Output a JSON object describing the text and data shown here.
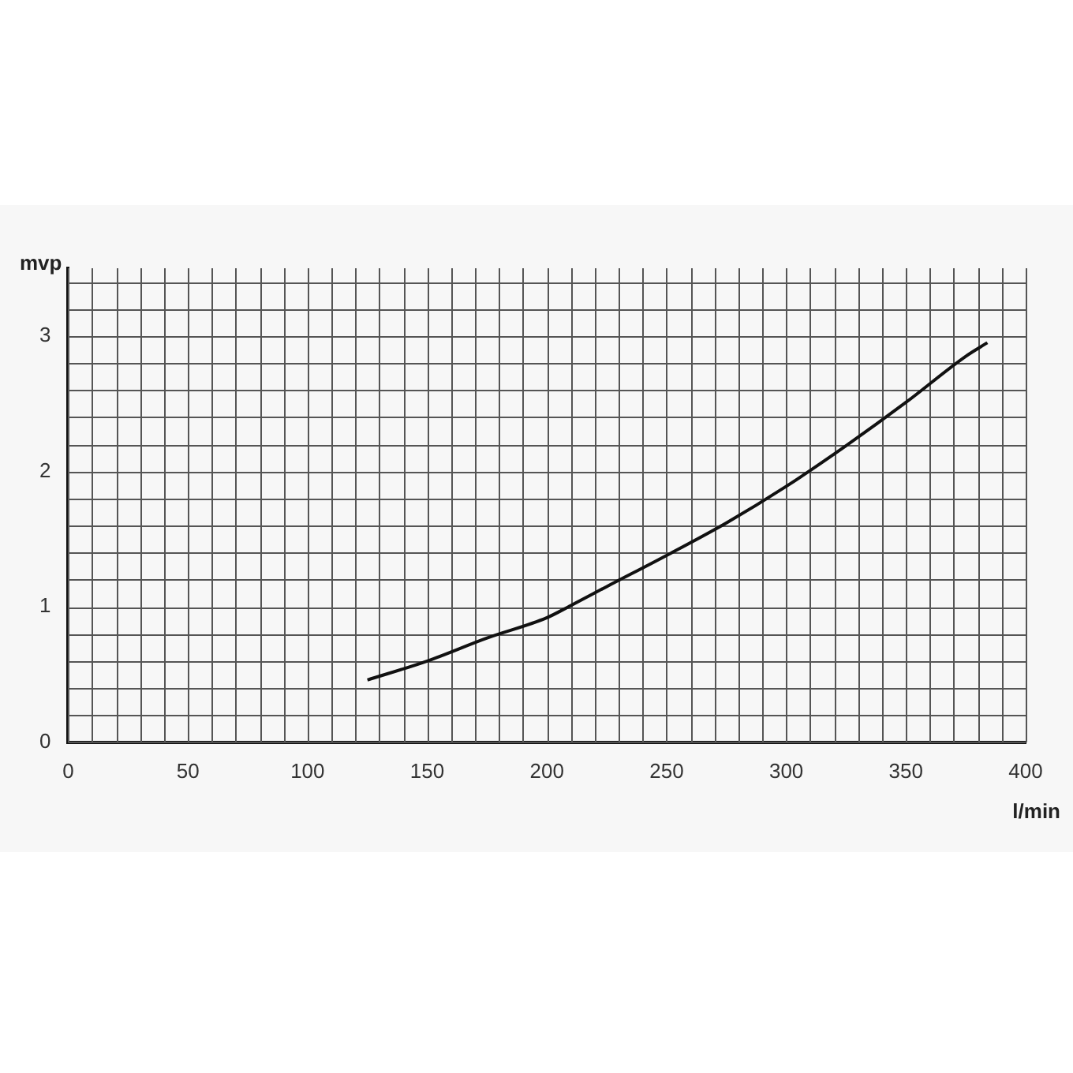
{
  "chart_data": {
    "type": "line",
    "xlabel": "l/min",
    "ylabel": "mvp",
    "grid": true,
    "x": [
      125,
      150,
      175,
      200,
      210,
      225,
      250,
      275,
      300,
      325,
      350,
      375,
      384
    ],
    "series": [
      {
        "color": "#111111",
        "values": [
          0.46,
          0.6,
          0.77,
          0.92,
          1.01,
          1.15,
          1.38,
          1.62,
          1.89,
          2.19,
          2.51,
          2.85,
          2.95
        ]
      }
    ],
    "xlim": [
      0,
      400
    ],
    "xticks": [
      0,
      50,
      100,
      150,
      200,
      250,
      300,
      350,
      400
    ],
    "ylim": [
      0,
      3.5
    ],
    "yticks": [
      0,
      1,
      2,
      3
    ],
    "marker": "none",
    "line_style": "solid"
  }
}
